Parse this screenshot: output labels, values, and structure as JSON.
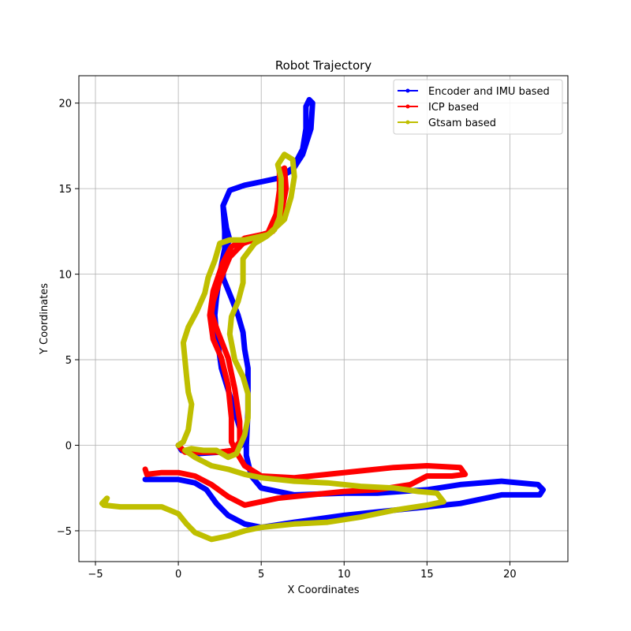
{
  "chart_data": {
    "type": "line",
    "title": "Robot Trajectory",
    "xlabel": "X Coordinates",
    "ylabel": "Y Coordinates",
    "xlim": [
      -6,
      23.5
    ],
    "ylim": [
      -6.8,
      21.6
    ],
    "xticks": [
      -5,
      0,
      5,
      10,
      15,
      20
    ],
    "yticks": [
      -5,
      0,
      5,
      10,
      15,
      20
    ],
    "grid": true,
    "legend_position": "upper right",
    "series": [
      {
        "name": "Encoder and IMU based",
        "color": "#0000ff",
        "points": [
          [
            -2,
            -2
          ],
          [
            -1,
            -2
          ],
          [
            0,
            -2
          ],
          [
            1,
            -2.2
          ],
          [
            1.7,
            -2.6
          ],
          [
            2.3,
            -3.4
          ],
          [
            3,
            -4.1
          ],
          [
            4,
            -4.6
          ],
          [
            5,
            -4.8
          ],
          [
            7,
            -4.5
          ],
          [
            10,
            -4.1
          ],
          [
            13,
            -3.8
          ],
          [
            15,
            -3.6
          ],
          [
            17,
            -3.4
          ],
          [
            19.5,
            -2.9
          ],
          [
            21.8,
            -2.9
          ],
          [
            22,
            -2.6
          ],
          [
            21.7,
            -2.3
          ],
          [
            19.5,
            -2.1
          ],
          [
            17,
            -2.3
          ],
          [
            15,
            -2.6
          ],
          [
            12,
            -2.8
          ],
          [
            10,
            -2.8
          ],
          [
            7,
            -2.9
          ],
          [
            5,
            -2.5
          ],
          [
            4.4,
            -1.8
          ],
          [
            4.1,
            -0.6
          ],
          [
            4.1,
            0
          ],
          [
            4.2,
            2
          ],
          [
            4.2,
            4.5
          ],
          [
            4,
            5.6
          ],
          [
            3.9,
            6.6
          ],
          [
            3.6,
            7.6
          ],
          [
            3.2,
            8.6
          ],
          [
            2.7,
            9.8
          ],
          [
            2.8,
            11.5
          ],
          [
            3.1,
            12
          ],
          [
            2.9,
            12.7
          ],
          [
            2.7,
            14
          ],
          [
            3.1,
            14.9
          ],
          [
            4,
            15.2
          ],
          [
            5,
            15.4
          ],
          [
            6,
            15.6
          ],
          [
            6.9,
            16.1
          ],
          [
            7.5,
            17
          ],
          [
            8,
            18.5
          ],
          [
            8.1,
            20
          ],
          [
            7.9,
            20.2
          ],
          [
            7.7,
            19.8
          ],
          [
            7.7,
            18.5
          ],
          [
            7.5,
            17.3
          ],
          [
            6.9,
            16.2
          ],
          [
            6,
            15.6
          ],
          [
            5,
            15.4
          ],
          [
            4,
            15.2
          ],
          [
            3.1,
            14.9
          ],
          [
            2.7,
            14
          ],
          [
            2.8,
            12.5
          ],
          [
            2.8,
            11.5
          ],
          [
            2.5,
            10
          ],
          [
            2.3,
            8.6
          ],
          [
            2.2,
            7.6
          ],
          [
            2.3,
            6.6
          ],
          [
            2.6,
            4.5
          ],
          [
            3.3,
            2.3
          ],
          [
            3.7,
            1
          ],
          [
            3.8,
            0
          ],
          [
            3.4,
            -0.3
          ],
          [
            2.5,
            -0.4
          ],
          [
            1,
            -0.5
          ],
          [
            0.2,
            -0.3
          ],
          [
            0,
            0
          ]
        ]
      },
      {
        "name": "ICP based",
        "color": "#ff0000",
        "points": [
          [
            -2,
            -1.4
          ],
          [
            -1.9,
            -1.7
          ],
          [
            -1,
            -1.6
          ],
          [
            0,
            -1.6
          ],
          [
            1,
            -1.8
          ],
          [
            2,
            -2.3
          ],
          [
            3,
            -3
          ],
          [
            4,
            -3.5
          ],
          [
            5,
            -3.3
          ],
          [
            6,
            -3.1
          ],
          [
            8,
            -2.9
          ],
          [
            10,
            -2.7
          ],
          [
            12,
            -2.6
          ],
          [
            14,
            -2.3
          ],
          [
            15,
            -1.8
          ],
          [
            16.5,
            -1.8
          ],
          [
            17.3,
            -1.7
          ],
          [
            17,
            -1.3
          ],
          [
            15,
            -1.2
          ],
          [
            13,
            -1.3
          ],
          [
            11,
            -1.5
          ],
          [
            9,
            -1.7
          ],
          [
            7,
            -1.9
          ],
          [
            5,
            -1.8
          ],
          [
            4,
            -1.2
          ],
          [
            3.5,
            -0.4
          ],
          [
            3.2,
            0.2
          ],
          [
            3.2,
            1.6
          ],
          [
            3,
            3.5
          ],
          [
            2.6,
            5.1
          ],
          [
            2.1,
            6.2
          ],
          [
            1.9,
            7.6
          ],
          [
            2.1,
            9
          ],
          [
            2.7,
            10.7
          ],
          [
            3.2,
            11.6
          ],
          [
            4,
            12.1
          ],
          [
            5,
            12.3
          ],
          [
            5.7,
            12.5
          ],
          [
            6.2,
            13.5
          ],
          [
            6.5,
            15
          ],
          [
            6.4,
            16.2
          ],
          [
            6.1,
            16
          ],
          [
            6.1,
            14.9
          ],
          [
            5.9,
            13.5
          ],
          [
            5.4,
            12.4
          ],
          [
            4.8,
            12.1
          ],
          [
            3.9,
            11.8
          ],
          [
            3.1,
            11
          ],
          [
            2.5,
            9.6
          ],
          [
            2.1,
            8.4
          ],
          [
            2,
            7.7
          ],
          [
            2.4,
            6.6
          ],
          [
            3,
            5.1
          ],
          [
            3.4,
            3.3
          ],
          [
            3.7,
            1.4
          ],
          [
            3.7,
            0.2
          ],
          [
            3.3,
            -0.3
          ],
          [
            2.5,
            -0.4
          ],
          [
            1.2,
            -0.4
          ],
          [
            0.4,
            -0.4
          ],
          [
            0,
            0
          ]
        ]
      },
      {
        "name": "Gtsam based",
        "color": "#bfbf00",
        "points": [
          [
            -4.6,
            -3.4
          ],
          [
            -4.3,
            -3.1
          ],
          [
            -4.5,
            -3.5
          ],
          [
            -3.5,
            -3.6
          ],
          [
            -2,
            -3.6
          ],
          [
            -1,
            -3.6
          ],
          [
            0,
            -4
          ],
          [
            0.5,
            -4.6
          ],
          [
            1,
            -5.1
          ],
          [
            2,
            -5.5
          ],
          [
            3,
            -5.3
          ],
          [
            4,
            -5
          ],
          [
            5,
            -4.8
          ],
          [
            7,
            -4.6
          ],
          [
            9,
            -4.5
          ],
          [
            11,
            -4.2
          ],
          [
            13,
            -3.8
          ],
          [
            15,
            -3.5
          ],
          [
            16,
            -3.3
          ],
          [
            15.6,
            -2.8
          ],
          [
            14.5,
            -2.7
          ],
          [
            13,
            -2.5
          ],
          [
            11,
            -2.4
          ],
          [
            9,
            -2.2
          ],
          [
            7,
            -2.1
          ],
          [
            5,
            -1.9
          ],
          [
            4,
            -1.7
          ],
          [
            3,
            -1.4
          ],
          [
            2,
            -1.2
          ],
          [
            1,
            -0.7
          ],
          [
            0.4,
            -0.3
          ],
          [
            0.8,
            -0.2
          ],
          [
            1.5,
            -0.3
          ],
          [
            2.3,
            -0.3
          ],
          [
            3,
            -0.7
          ],
          [
            3.5,
            -0.5
          ],
          [
            4,
            0.6
          ],
          [
            4.2,
            1.6
          ],
          [
            4.2,
            3
          ],
          [
            3.9,
            4
          ],
          [
            3.4,
            5
          ],
          [
            3.1,
            6.5
          ],
          [
            3.2,
            7.5
          ],
          [
            3.6,
            8.4
          ],
          [
            3.9,
            9.5
          ],
          [
            3.9,
            10.9
          ],
          [
            4.6,
            11.8
          ],
          [
            5.3,
            12.2
          ],
          [
            5.8,
            12.6
          ],
          [
            6.1,
            13.3
          ],
          [
            6.2,
            14.3
          ],
          [
            6.2,
            15.6
          ],
          [
            6,
            16.4
          ],
          [
            6.4,
            17
          ],
          [
            6.9,
            16.7
          ],
          [
            7,
            15.7
          ],
          [
            6.8,
            14.5
          ],
          [
            6.4,
            13.2
          ],
          [
            5.4,
            12.3
          ],
          [
            4,
            12
          ],
          [
            3.1,
            12
          ],
          [
            2.5,
            11.8
          ],
          [
            2.2,
            10.8
          ],
          [
            1.8,
            9.8
          ],
          [
            1.6,
            8.9
          ],
          [
            1.1,
            7.8
          ],
          [
            0.6,
            6.9
          ],
          [
            0.3,
            6
          ],
          [
            0.4,
            5
          ],
          [
            0.5,
            4
          ],
          [
            0.6,
            3.1
          ],
          [
            0.8,
            2.4
          ],
          [
            0.6,
            0.9
          ],
          [
            0.3,
            0.2
          ],
          [
            0,
            0
          ]
        ]
      }
    ]
  }
}
